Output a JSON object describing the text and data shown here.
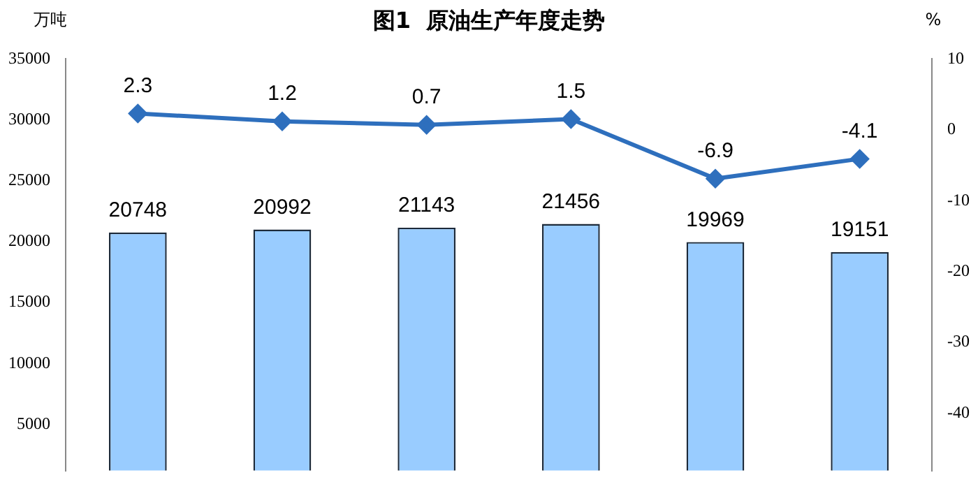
{
  "chart_data": {
    "type": "bar",
    "title": "图1  原油生产年度走势",
    "ylabel": "万吨",
    "y2label": "%",
    "categories": [
      null,
      null,
      null,
      null,
      null,
      null
    ],
    "series": [
      {
        "color": "#99ccff",
        "values": [
          20748,
          20992,
          21143,
          21456,
          19969,
          19151
        ]
      },
      {
        "type": "line",
        "axis": "y2",
        "color": "#2e6fbd",
        "marker": "diamond",
        "values": [
          2.3,
          1.2,
          0.7,
          1.5,
          -6.9,
          -4.1
        ]
      }
    ],
    "ylim": [
      1200,
      35000
    ],
    "yticks": [
      5000,
      10000,
      15000,
      20000,
      25000,
      30000,
      35000
    ],
    "y2lim": [
      -48.1,
      10
    ],
    "y2ticks": [
      -40,
      -30,
      -20,
      -10,
      0,
      10
    ],
    "data_labels": true,
    "grid": false,
    "legend": false
  }
}
